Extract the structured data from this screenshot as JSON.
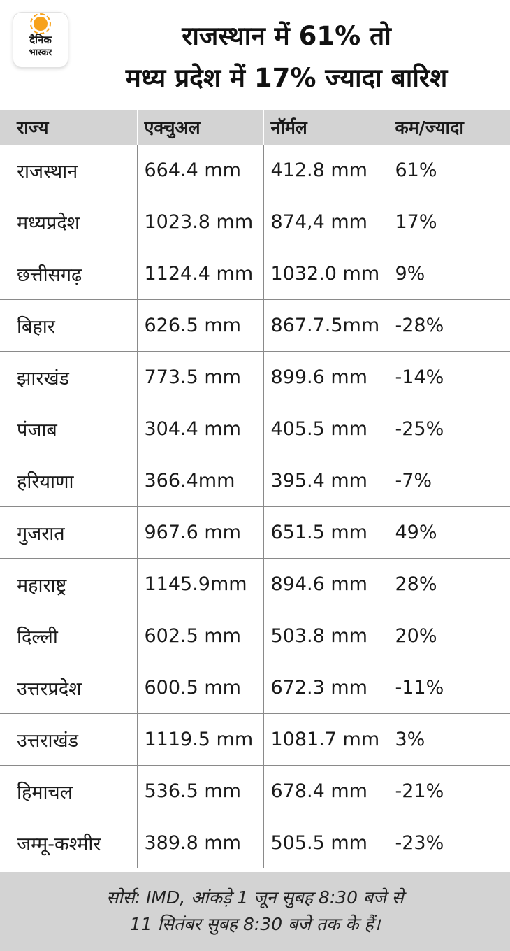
{
  "brand": {
    "line1": "दैनिक",
    "line2": "भास्कर",
    "color": "#f7a21b"
  },
  "title": {
    "line1": "राजस्थान में 61% तो",
    "line2": "मध्य प्रदेश में 17% ज्यादा बारिश"
  },
  "table": {
    "headers": [
      "राज्य",
      "एक्चुअल",
      "नॉर्मल",
      "कम/ज्यादा"
    ],
    "rows": [
      [
        "राजस्थान",
        "664.4 mm",
        "412.8 mm",
        "61%"
      ],
      [
        "मध्यप्रदेश",
        "1023.8 mm",
        "874,4 mm",
        "17%"
      ],
      [
        "छत्तीसगढ़",
        "1124.4 mm",
        "1032.0 mm",
        "9%"
      ],
      [
        "बिहार",
        "626.5 mm",
        "867.7.5mm",
        "-28%"
      ],
      [
        "झारखंड",
        "773.5 mm",
        "899.6 mm",
        "-14%"
      ],
      [
        "पंजाब",
        "304.4 mm",
        "405.5 mm",
        "-25%"
      ],
      [
        "हरियाणा",
        "366.4mm",
        "395.4 mm",
        "-7%"
      ],
      [
        "गुजरात",
        "967.6 mm",
        "651.5 mm",
        "49%"
      ],
      [
        "महाराष्ट्र",
        "1145.9mm",
        "894.6 mm",
        "28%"
      ],
      [
        "दिल्ली",
        "602.5 mm",
        "503.8 mm",
        "20%"
      ],
      [
        "उत्तरप्रदेश",
        "600.5 mm",
        "672.3 mm",
        "-11%"
      ],
      [
        "उत्तराखंड",
        "1119.5 mm",
        "1081.7 mm",
        "3%"
      ],
      [
        "हिमाचल",
        "536.5 mm",
        "678.4 mm",
        "-21%"
      ],
      [
        "जम्मू-कश्मीर",
        "389.8 mm",
        "505.5 mm",
        "-23%"
      ]
    ]
  },
  "footer": {
    "line1": "सोर्स: IMD, आंकड़े 1 जून सुबह 8:30 बजे से",
    "line2": "11 सितंबर सुबह 8:30 बजे तक के हैं।"
  },
  "colors": {
    "header_bg": "#d3d3d3",
    "footer_bg": "#d3d3d3",
    "grid": "#8a8a8a"
  }
}
